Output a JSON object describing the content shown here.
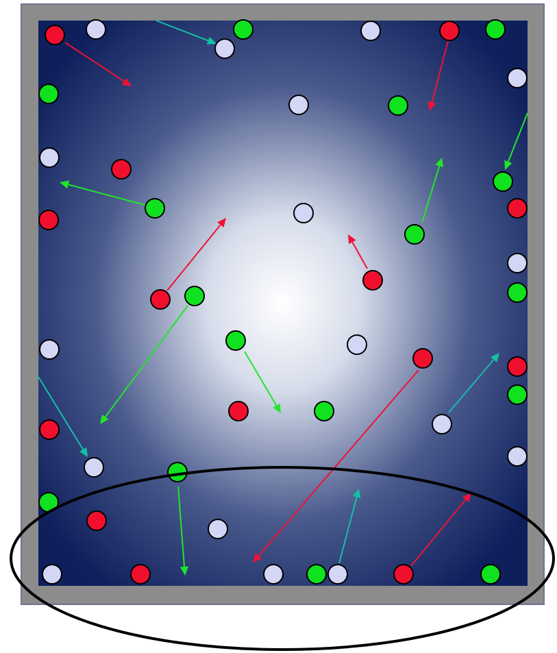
{
  "diagram": {
    "colors": {
      "frame": "#8c8c8c",
      "frame_edge": "#6f7393",
      "box_outer": "#0e1f5c",
      "box_center": "#ffffff",
      "red": "#f0102e",
      "green": "#10e21f",
      "lavender": "#d4d6f6",
      "arrow_red": "#ef1236",
      "arrow_green": "#20e62a",
      "arrow_teal": "#14bfa6",
      "ellipse": "#000000"
    },
    "particles": [
      {
        "id": "p1",
        "color": "red"
      },
      {
        "id": "p2",
        "color": "lavender"
      },
      {
        "id": "p3",
        "color": "lavender"
      },
      {
        "id": "p4",
        "color": "green"
      },
      {
        "id": "p5",
        "color": "lavender"
      },
      {
        "id": "p6",
        "color": "red"
      },
      {
        "id": "p7",
        "color": "green"
      },
      {
        "id": "p8",
        "color": "green"
      },
      {
        "id": "p9",
        "color": "lavender"
      },
      {
        "id": "p10",
        "color": "green"
      },
      {
        "id": "p11",
        "color": "lavender"
      },
      {
        "id": "p12",
        "color": "lavender"
      },
      {
        "id": "p13",
        "color": "red"
      },
      {
        "id": "p14",
        "color": "green"
      },
      {
        "id": "p15",
        "color": "red"
      },
      {
        "id": "p16",
        "color": "green"
      },
      {
        "id": "p17",
        "color": "red"
      },
      {
        "id": "p18",
        "color": "lavender"
      },
      {
        "id": "p19",
        "color": "green"
      },
      {
        "id": "p20",
        "color": "lavender"
      },
      {
        "id": "p21",
        "color": "red"
      },
      {
        "id": "p22",
        "color": "lavender"
      },
      {
        "id": "p23",
        "color": "red"
      },
      {
        "id": "p24",
        "color": "green"
      },
      {
        "id": "p25",
        "color": "green"
      },
      {
        "id": "p26",
        "color": "lavender"
      },
      {
        "id": "p27",
        "color": "green"
      },
      {
        "id": "p28",
        "color": "lavender"
      },
      {
        "id": "p29",
        "color": "red"
      },
      {
        "id": "p30",
        "color": "red"
      },
      {
        "id": "p31",
        "color": "green"
      },
      {
        "id": "p32",
        "color": "red"
      },
      {
        "id": "p33",
        "color": "green"
      },
      {
        "id": "p34",
        "color": "lavender"
      },
      {
        "id": "p35",
        "color": "lavender"
      },
      {
        "id": "p36",
        "color": "green"
      },
      {
        "id": "p37",
        "color": "lavender"
      },
      {
        "id": "p38",
        "color": "lavender"
      },
      {
        "id": "p39",
        "color": "red"
      },
      {
        "id": "p40",
        "color": "lavender"
      },
      {
        "id": "p41",
        "color": "red"
      },
      {
        "id": "p42",
        "color": "lavender"
      },
      {
        "id": "p43",
        "color": "green"
      },
      {
        "id": "p44",
        "color": "lavender"
      },
      {
        "id": "p45",
        "color": "red"
      },
      {
        "id": "p46",
        "color": "green"
      },
      {
        "id": "p47",
        "color": "green"
      },
      {
        "id": "p48",
        "color": "lavender"
      },
      {
        "id": "p49",
        "color": "red"
      },
      {
        "id": "p50",
        "color": "green"
      }
    ],
    "arrows": [
      {
        "id": "a1",
        "color": "red"
      },
      {
        "id": "a2",
        "color": "teal"
      },
      {
        "id": "a3",
        "color": "red"
      },
      {
        "id": "a4",
        "color": "green"
      },
      {
        "id": "a5",
        "color": "green"
      },
      {
        "id": "a6",
        "color": "green"
      },
      {
        "id": "a7",
        "color": "red"
      },
      {
        "id": "a8",
        "color": "red"
      },
      {
        "id": "a9",
        "color": "green"
      },
      {
        "id": "a10",
        "color": "green"
      },
      {
        "id": "a11",
        "color": "teal"
      },
      {
        "id": "a12",
        "color": "teal"
      },
      {
        "id": "a13",
        "color": "red"
      },
      {
        "id": "a14",
        "color": "green"
      },
      {
        "id": "a15",
        "color": "teal"
      },
      {
        "id": "a16",
        "color": "red"
      }
    ],
    "highlight": {
      "shape": "ellipse",
      "region": "bottom"
    }
  }
}
